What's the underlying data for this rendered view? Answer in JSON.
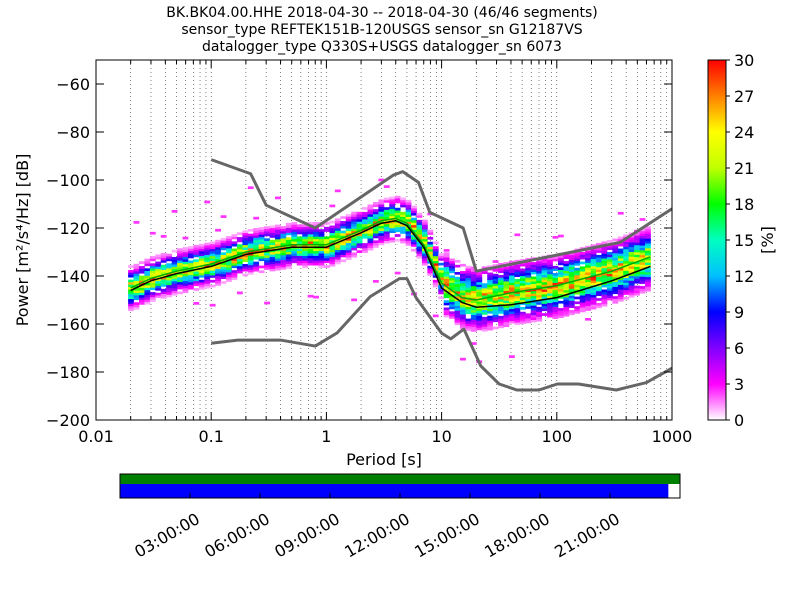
{
  "title_lines": [
    "BK.BK04.00.HHE   2018-04-30 -- 2018-04-30  (46/46 segments)",
    "sensor_type REFTEK151B-120USGS sensor_sn G12187VS",
    "datalogger_type Q330S+USGS datalogger_sn 6073"
  ],
  "colors": {
    "model_curve": "#666666",
    "mode_line": "#000000",
    "mean_line": "#00aa00",
    "data_available": "#0000ff",
    "gap_bar_top": "#008000"
  },
  "chart_data": {
    "type": "heatmap",
    "xlabel": "Period [s]",
    "ylabel": "Power [m²/s⁴/Hz] [dB]",
    "x_scale": "log",
    "xlim": [
      0.01,
      1000
    ],
    "ylim": [
      -200,
      -50
    ],
    "x_ticks": [
      0.01,
      0.1,
      1,
      10,
      100,
      1000
    ],
    "x_tick_labels": [
      "0.01",
      "0.1",
      "1",
      "10",
      "100",
      "1000"
    ],
    "y_ticks": [
      -60,
      -80,
      -100,
      -120,
      -140,
      -160,
      -180,
      -200
    ],
    "y_tick_labels": [
      "−60",
      "−80",
      "−100",
      "−120",
      "−140",
      "−160",
      "−180",
      "−200"
    ],
    "grid": "dotted, vertical at log decades",
    "colorbar": {
      "label": "[%]",
      "range": [
        0,
        30
      ],
      "ticks": [
        0,
        3,
        6,
        9,
        12,
        15,
        18,
        21,
        24,
        27,
        30
      ],
      "tick_labels": [
        "0",
        "3",
        "6",
        "9",
        "12",
        "15",
        "18",
        "21",
        "24",
        "27",
        "30"
      ],
      "colormap": [
        "#ffffff",
        "#ff00ff",
        "#8000ff",
        "#0000ff",
        "#00c0ff",
        "#00ffc0",
        "#00ff00",
        "#c0ff00",
        "#ffff00",
        "#ff8000",
        "#ff0000"
      ]
    },
    "noise_model_high": {
      "period": [
        0.1,
        0.22,
        0.3,
        0.8,
        3.8,
        4.6,
        6.3,
        7.9,
        15.4,
        20.0,
        354.8,
        1000
      ],
      "power": [
        -91.5,
        -97.4,
        -110.5,
        -120.0,
        -98.0,
        -96.5,
        -101.0,
        -113.5,
        -120.0,
        -138.0,
        -126.0,
        -112.0
      ]
    },
    "noise_model_low": {
      "period": [
        0.1,
        0.17,
        0.4,
        0.8,
        1.24,
        2.4,
        4.3,
        5.0,
        6.0,
        10.0,
        12.0,
        15.6,
        21.9,
        31.6,
        45.0,
        70.0,
        101.0,
        154.0,
        328.0,
        600.0,
        1000.0
      ],
      "power": [
        -168.0,
        -166.7,
        -166.7,
        -169.2,
        -163.7,
        -148.6,
        -141.1,
        -141.1,
        -149.0,
        -163.8,
        -166.2,
        -162.1,
        -177.5,
        -185.0,
        -187.5,
        -187.5,
        -185.0,
        -185.0,
        -187.5,
        -184.4,
        -178.4
      ]
    },
    "mode_psd": {
      "period": [
        0.02,
        0.03,
        0.05,
        0.1,
        0.2,
        0.5,
        1,
        2,
        3,
        4,
        5,
        7,
        10,
        15,
        20,
        40,
        100,
        300,
        650
      ],
      "power": [
        -146,
        -142,
        -139,
        -136,
        -131,
        -128,
        -128,
        -122,
        -118,
        -117,
        -119,
        -128,
        -145,
        -151,
        -153,
        -152,
        -149,
        -142,
        -136
      ]
    },
    "mean_psd": {
      "period": [
        0.02,
        0.03,
        0.05,
        0.1,
        0.2,
        0.5,
        1,
        2,
        3,
        4,
        5,
        7,
        10,
        15,
        20,
        40,
        100,
        300,
        650
      ],
      "power": [
        -145,
        -141,
        -138,
        -135,
        -130,
        -127,
        -127,
        -121,
        -117,
        -116,
        -118,
        -127,
        -143,
        -149,
        -150,
        -147,
        -144,
        -138,
        -132
      ]
    },
    "timeline": {
      "tick_labels": [
        "03:00:00",
        "06:00:00",
        "09:00:00",
        "12:00:00",
        "15:00:00",
        "18:00:00",
        "21:00:00"
      ],
      "tick_hours": [
        3,
        6,
        9,
        12,
        15,
        18,
        21
      ],
      "range_hours": [
        0,
        24
      ],
      "data_coverage_hours": [
        0,
        23.5
      ]
    }
  }
}
